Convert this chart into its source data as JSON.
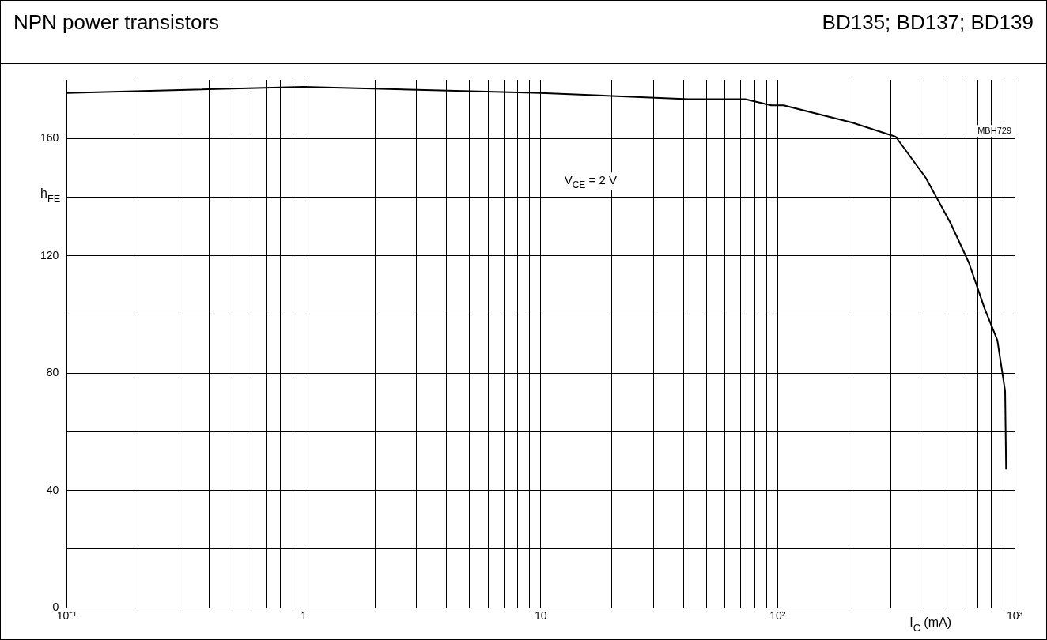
{
  "chart_data": {
    "type": "line",
    "title": "NPN power transistors",
    "subtitle": "BD135; BD137; BD139",
    "xlabel": "I$_{C}$ (mA)",
    "ylabel": "h$_{FE}$",
    "annotations": [
      "V$_{CE}$ = 2 V",
      "MBH729"
    ],
    "x": [
      0.1,
      1,
      10,
      42,
      73,
      94,
      106,
      207,
      315,
      422,
      537,
      641,
      746,
      846,
      912,
      921
    ],
    "series": [
      {
        "color": "#000000",
        "values": [
          175.5,
          177.6,
          175.5,
          173.4,
          173.4,
          171.3,
          171.3,
          165.4,
          160.6,
          146.6,
          131.1,
          117.7,
          102.2,
          91.2,
          73.9,
          47.1
        ]
      }
    ],
    "log": "x",
    "xlim": [
      0.1,
      1000
    ],
    "xticks": [
      {
        "value": 0.1,
        "label": "10⁻¹"
      },
      {
        "value": 0.2,
        "label": null
      },
      {
        "value": 0.3,
        "label": null
      },
      {
        "value": 0.4,
        "label": null
      },
      {
        "value": 0.5,
        "label": null
      },
      {
        "value": 0.6,
        "label": null
      },
      {
        "value": 0.7,
        "label": null
      },
      {
        "value": 0.8,
        "label": null
      },
      {
        "value": 0.9,
        "label": null
      },
      1,
      {
        "value": 2,
        "label": null
      },
      {
        "value": 3,
        "label": null
      },
      {
        "value": 4,
        "label": null
      },
      {
        "value": 5,
        "label": null
      },
      {
        "value": 6,
        "label": null
      },
      {
        "value": 7,
        "label": null
      },
      {
        "value": 8,
        "label": null
      },
      {
        "value": 9,
        "label": null
      },
      10,
      {
        "value": 20,
        "label": null
      },
      {
        "value": 30,
        "label": null
      },
      {
        "value": 40,
        "label": null
      },
      {
        "value": 50,
        "label": null
      },
      {
        "value": 60,
        "label": null
      },
      {
        "value": 70,
        "label": null
      },
      {
        "value": 80,
        "label": null
      },
      {
        "value": 90,
        "label": null
      },
      {
        "value": 100,
        "label": "10²"
      },
      {
        "value": 200,
        "label": null
      },
      {
        "value": 300,
        "label": null
      },
      {
        "value": 400,
        "label": null
      },
      {
        "value": 500,
        "label": null
      },
      {
        "value": 600,
        "label": null
      },
      {
        "value": 700,
        "label": null
      },
      {
        "value": 800,
        "label": null
      },
      {
        "value": 900,
        "label": null
      },
      {
        "value": 1000,
        "label": "10³"
      }
    ],
    "ylim": [
      0,
      180
    ],
    "yticks": [
      0,
      {
        "value": 20,
        "label": null
      },
      40,
      {
        "value": 60,
        "label": null
      },
      80,
      {
        "value": 100,
        "label": null
      },
      120,
      {
        "value": 140,
        "label": null
      },
      160
    ],
    "grid": true,
    "legend": false,
    "marker": "none",
    "line_style": "solid"
  }
}
